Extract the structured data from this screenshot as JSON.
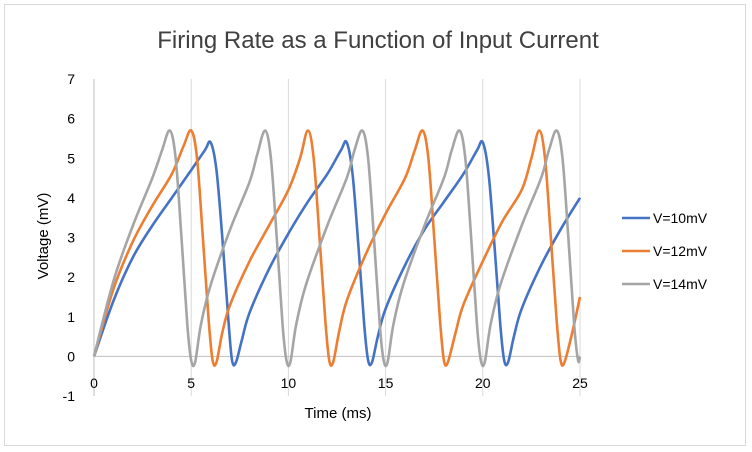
{
  "chart_data": {
    "type": "line",
    "title": "Firing Rate as a Function of Input Current",
    "xlabel": "Time (ms)",
    "ylabel": "Voltage (mV)",
    "xlim": [
      0,
      25
    ],
    "ylim": [
      -1,
      7
    ],
    "x_ticks": [
      "0",
      "5",
      "10",
      "15",
      "20",
      "25"
    ],
    "y_ticks": [
      "-1",
      "0",
      "1",
      "2",
      "3",
      "4",
      "5",
      "6",
      "7"
    ],
    "grid": "vertical",
    "legend_position": "right",
    "series": [
      {
        "name": "V=10mV",
        "color": "#4472C4",
        "points": [
          [
            0,
            0
          ],
          [
            1,
            1.4
          ],
          [
            2,
            2.5
          ],
          [
            3,
            3.3
          ],
          [
            4,
            4.0
          ],
          [
            5,
            4.7
          ],
          [
            5.7,
            5.2
          ],
          [
            6.0,
            5.4
          ],
          [
            6.3,
            4.7
          ],
          [
            6.6,
            3.0
          ],
          [
            6.9,
            1.0
          ],
          [
            7.1,
            -0.1
          ],
          [
            7.3,
            -0.15
          ],
          [
            7.6,
            0.4
          ],
          [
            8.0,
            1.1
          ],
          [
            9,
            2.2
          ],
          [
            10,
            3.1
          ],
          [
            11,
            3.9
          ],
          [
            12,
            4.6
          ],
          [
            12.7,
            5.2
          ],
          [
            13.0,
            5.4
          ],
          [
            13.3,
            4.6
          ],
          [
            13.6,
            2.8
          ],
          [
            13.9,
            0.8
          ],
          [
            14.1,
            -0.1
          ],
          [
            14.3,
            -0.15
          ],
          [
            14.6,
            0.5
          ],
          [
            15,
            1.2
          ],
          [
            16,
            2.3
          ],
          [
            17,
            3.2
          ],
          [
            18,
            3.9
          ],
          [
            19,
            4.6
          ],
          [
            19.7,
            5.2
          ],
          [
            20.0,
            5.4
          ],
          [
            20.3,
            4.6
          ],
          [
            20.6,
            2.8
          ],
          [
            20.9,
            0.8
          ],
          [
            21.1,
            -0.1
          ],
          [
            21.3,
            -0.15
          ],
          [
            21.6,
            0.5
          ],
          [
            22,
            1.2
          ],
          [
            23,
            2.3
          ],
          [
            24,
            3.2
          ],
          [
            25,
            4.0
          ]
        ]
      },
      {
        "name": "V=12mV",
        "color": "#ED7D31",
        "points": [
          [
            0,
            0
          ],
          [
            1,
            1.7
          ],
          [
            2,
            2.9
          ],
          [
            3,
            3.8
          ],
          [
            4,
            4.6
          ],
          [
            4.6,
            5.3
          ],
          [
            5.0,
            5.7
          ],
          [
            5.3,
            5.0
          ],
          [
            5.6,
            3.0
          ],
          [
            5.9,
            0.9
          ],
          [
            6.1,
            -0.1
          ],
          [
            6.3,
            -0.15
          ],
          [
            6.6,
            0.6
          ],
          [
            7.0,
            1.3
          ],
          [
            8,
            2.4
          ],
          [
            9,
            3.3
          ],
          [
            10,
            4.2
          ],
          [
            10.6,
            5.0
          ],
          [
            11.0,
            5.7
          ],
          [
            11.3,
            5.0
          ],
          [
            11.6,
            3.0
          ],
          [
            11.9,
            0.9
          ],
          [
            12.1,
            -0.1
          ],
          [
            12.3,
            -0.15
          ],
          [
            12.6,
            0.6
          ],
          [
            13.0,
            1.4
          ],
          [
            14,
            2.6
          ],
          [
            15,
            3.6
          ],
          [
            16,
            4.5
          ],
          [
            16.5,
            5.2
          ],
          [
            16.9,
            5.7
          ],
          [
            17.2,
            5.0
          ],
          [
            17.5,
            3.0
          ],
          [
            17.8,
            0.9
          ],
          [
            18.0,
            -0.1
          ],
          [
            18.2,
            -0.15
          ],
          [
            18.6,
            0.6
          ],
          [
            19.0,
            1.3
          ],
          [
            20,
            2.4
          ],
          [
            21,
            3.4
          ],
          [
            22,
            4.2
          ],
          [
            22.5,
            5.0
          ],
          [
            22.9,
            5.7
          ],
          [
            23.2,
            5.0
          ],
          [
            23.5,
            3.0
          ],
          [
            23.8,
            0.9
          ],
          [
            24.0,
            -0.1
          ],
          [
            24.2,
            -0.15
          ],
          [
            24.6,
            0.6
          ],
          [
            25,
            1.5
          ]
        ]
      },
      {
        "name": "V=14mV",
        "color": "#A5A5A5",
        "points": [
          [
            0,
            0
          ],
          [
            1,
            1.9
          ],
          [
            2,
            3.3
          ],
          [
            3,
            4.5
          ],
          [
            3.5,
            5.2
          ],
          [
            3.9,
            5.7
          ],
          [
            4.2,
            5.0
          ],
          [
            4.5,
            3.0
          ],
          [
            4.8,
            0.8
          ],
          [
            5.0,
            -0.1
          ],
          [
            5.2,
            -0.15
          ],
          [
            5.5,
            0.8
          ],
          [
            6.0,
            1.8
          ],
          [
            7,
            3.2
          ],
          [
            8,
            4.4
          ],
          [
            8.4,
            5.1
          ],
          [
            8.8,
            5.7
          ],
          [
            9.1,
            5.0
          ],
          [
            9.4,
            3.0
          ],
          [
            9.7,
            0.8
          ],
          [
            9.9,
            -0.1
          ],
          [
            10.1,
            -0.15
          ],
          [
            10.4,
            0.8
          ],
          [
            10.9,
            1.8
          ],
          [
            12,
            3.3
          ],
          [
            13,
            4.5
          ],
          [
            13.4,
            5.2
          ],
          [
            13.8,
            5.7
          ],
          [
            14.1,
            5.0
          ],
          [
            14.4,
            3.0
          ],
          [
            14.7,
            0.8
          ],
          [
            14.9,
            -0.1
          ],
          [
            15.1,
            -0.15
          ],
          [
            15.4,
            0.8
          ],
          [
            15.9,
            1.8
          ],
          [
            17,
            3.3
          ],
          [
            18,
            4.5
          ],
          [
            18.4,
            5.2
          ],
          [
            18.8,
            5.7
          ],
          [
            19.1,
            5.0
          ],
          [
            19.4,
            3.0
          ],
          [
            19.7,
            0.8
          ],
          [
            19.9,
            -0.1
          ],
          [
            20.1,
            -0.15
          ],
          [
            20.4,
            0.8
          ],
          [
            20.9,
            1.8
          ],
          [
            22,
            3.3
          ],
          [
            23,
            4.5
          ],
          [
            23.4,
            5.2
          ],
          [
            23.8,
            5.7
          ],
          [
            24.1,
            5.0
          ],
          [
            24.4,
            3.0
          ],
          [
            24.7,
            0.8
          ],
          [
            24.9,
            -0.1
          ],
          [
            25,
            0
          ]
        ]
      }
    ]
  }
}
